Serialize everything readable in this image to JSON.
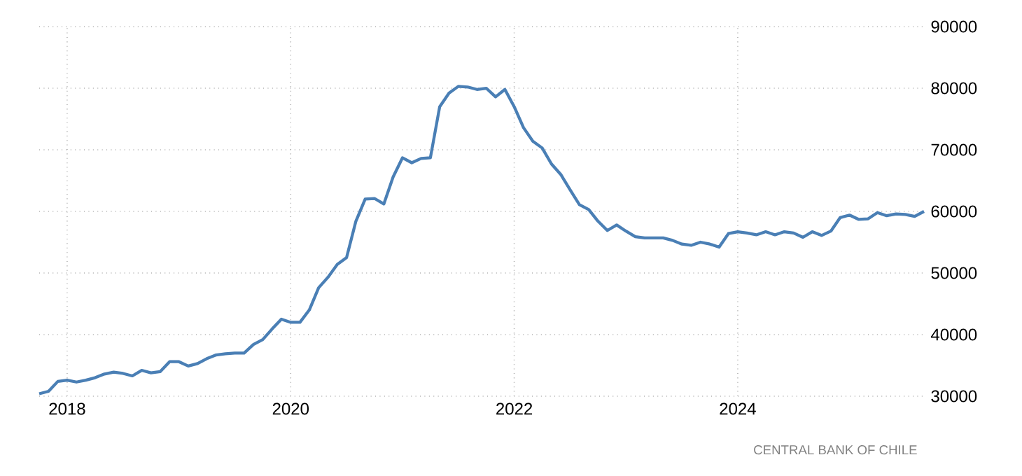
{
  "chart_data": {
    "type": "line",
    "x": [
      "2017-10",
      "2017-11",
      "2017-12",
      "2018-01",
      "2018-02",
      "2018-03",
      "2018-04",
      "2018-05",
      "2018-06",
      "2018-07",
      "2018-08",
      "2018-09",
      "2018-10",
      "2018-11",
      "2018-12",
      "2019-01",
      "2019-02",
      "2019-03",
      "2019-04",
      "2019-05",
      "2019-06",
      "2019-07",
      "2019-08",
      "2019-09",
      "2019-10",
      "2019-11",
      "2019-12",
      "2020-01",
      "2020-02",
      "2020-03",
      "2020-04",
      "2020-05",
      "2020-06",
      "2020-07",
      "2020-08",
      "2020-09",
      "2020-10",
      "2020-11",
      "2020-12",
      "2021-01",
      "2021-02",
      "2021-03",
      "2021-04",
      "2021-05",
      "2021-06",
      "2021-07",
      "2021-08",
      "2021-09",
      "2021-10",
      "2021-11",
      "2021-12",
      "2022-01",
      "2022-02",
      "2022-03",
      "2022-04",
      "2022-05",
      "2022-06",
      "2022-07",
      "2022-08",
      "2022-09",
      "2022-10",
      "2022-11",
      "2022-12",
      "2023-01",
      "2023-02",
      "2023-03",
      "2023-04",
      "2023-05",
      "2023-06",
      "2023-07",
      "2023-08",
      "2023-09",
      "2023-10",
      "2023-11",
      "2023-12",
      "2024-01",
      "2024-02",
      "2024-03",
      "2024-04",
      "2024-05",
      "2024-06",
      "2024-07",
      "2024-08",
      "2024-09",
      "2024-10",
      "2024-11",
      "2024-12",
      "2025-01",
      "2025-02",
      "2025-03",
      "2025-04",
      "2025-05",
      "2025-06",
      "2025-07",
      "2025-08",
      "2025-09"
    ],
    "series": [
      {
        "color": "#4a7fb5",
        "values": [
          30400,
          30800,
          32400,
          32600,
          32300,
          32600,
          33000,
          33600,
          33900,
          33700,
          33300,
          34200,
          33800,
          34000,
          35600,
          35600,
          34900,
          35300,
          36100,
          36700,
          36900,
          37000,
          37000,
          38400,
          39200,
          40900,
          42500,
          42000,
          42000,
          44000,
          47600,
          49300,
          51400,
          52500,
          58400,
          62000,
          62100,
          61200,
          65600,
          68700,
          67900,
          68600,
          68700,
          77000,
          79200,
          80300,
          80200,
          79800,
          80000,
          78600,
          79800,
          77000,
          73600,
          71400,
          70300,
          67700,
          66000,
          63500,
          61100,
          60300,
          58400,
          56900,
          57800,
          56800,
          55900,
          55700,
          55700,
          55700,
          55300,
          54700,
          54500,
          55000,
          54700,
          54200,
          56400,
          56700,
          56500,
          56200,
          56700,
          56200,
          56700,
          56500,
          55800,
          56700,
          56100,
          56800,
          59000,
          59400,
          58700,
          58800,
          59800,
          59300,
          59600,
          59500,
          59200,
          60000
        ]
      }
    ],
    "xlim": [
      "2017-10",
      "2025-09"
    ],
    "xticks": [
      "2018",
      "2020",
      "2022",
      "2024"
    ],
    "ylim": [
      30000,
      90000
    ],
    "yticks": [
      30000,
      40000,
      50000,
      60000,
      70000,
      80000,
      90000
    ],
    "grid": true,
    "annotations": [
      "CENTRAL BANK OF CHILE"
    ]
  }
}
